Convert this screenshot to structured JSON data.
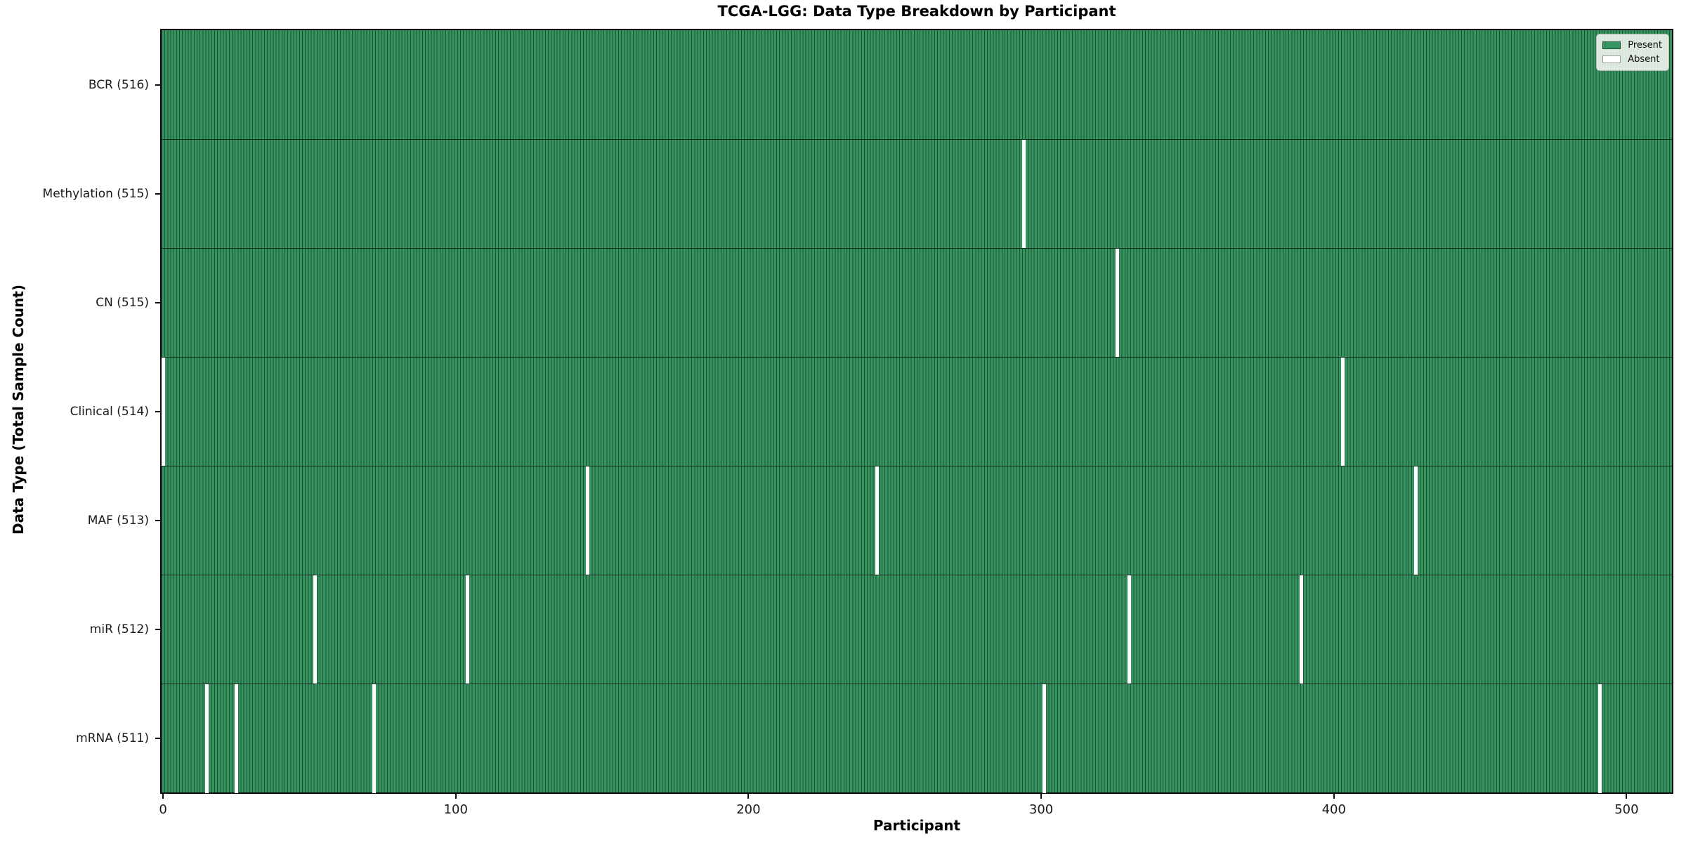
{
  "colors": {
    "present": "#37935f",
    "present_edge": "#1b5434",
    "absent": "#ffffff",
    "spine": "#0e0e0e"
  },
  "chart_data": {
    "type": "heatmap",
    "title": "TCGA-LGG: Data Type Breakdown by Participant",
    "xlabel": "Participant",
    "ylabel": "Data Type (Total Sample Count)",
    "n_participants": 516,
    "x_ticks": [
      0,
      100,
      200,
      300,
      400,
      500
    ],
    "xlim": [
      -0.5,
      515.5
    ],
    "grid": false,
    "legend_position": "upper right",
    "legend": [
      {
        "label": "Present",
        "color_key": "present"
      },
      {
        "label": "Absent",
        "color_key": "absent"
      }
    ],
    "rows": [
      {
        "label": "BCR (516)",
        "data_type": "BCR",
        "total": 516,
        "absent_participants": []
      },
      {
        "label": "Methylation (515)",
        "data_type": "Methylation",
        "total": 515,
        "absent_participants": [
          294
        ]
      },
      {
        "label": "CN (515)",
        "data_type": "CN",
        "total": 515,
        "absent_participants": [
          326
        ]
      },
      {
        "label": "Clinical (514)",
        "data_type": "Clinical",
        "total": 514,
        "absent_participants": [
          0,
          403
        ]
      },
      {
        "label": "MAF (513)",
        "data_type": "MAF",
        "total": 513,
        "absent_participants": [
          145,
          244,
          428
        ]
      },
      {
        "label": "miR (512)",
        "data_type": "miR",
        "total": 512,
        "absent_participants": [
          52,
          104,
          330,
          389
        ]
      },
      {
        "label": "mRNA (511)",
        "data_type": "mRNA",
        "total": 511,
        "absent_participants": [
          15,
          25,
          72,
          301,
          491
        ]
      }
    ]
  }
}
